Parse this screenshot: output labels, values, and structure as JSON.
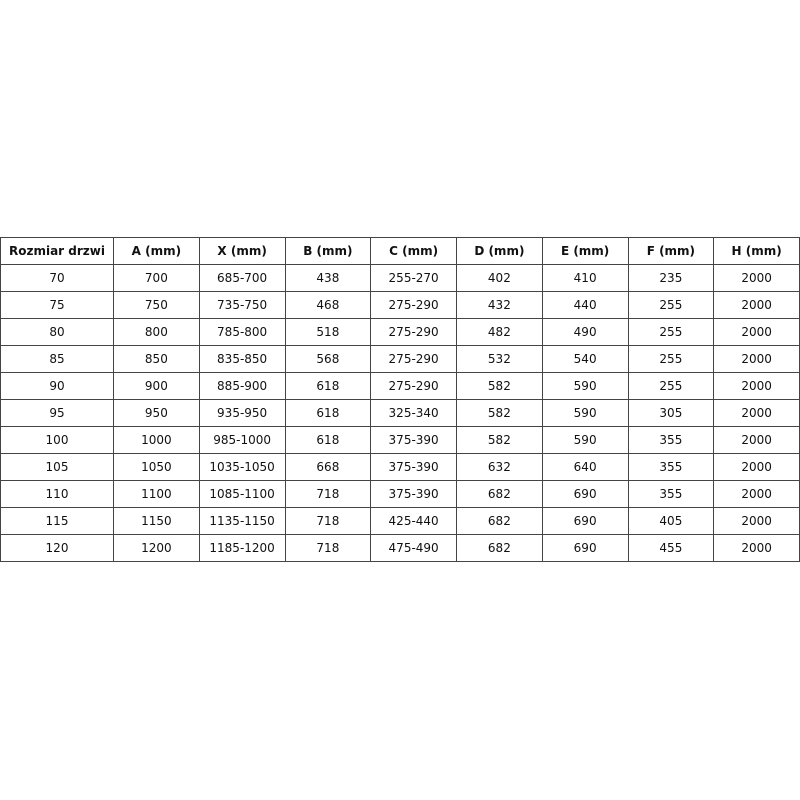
{
  "table": {
    "headers": [
      "Rozmiar drzwi",
      "A (mm)",
      "X (mm)",
      "B (mm)",
      "C (mm)",
      "D (mm)",
      "E (mm)",
      "F (mm)",
      "H (mm)"
    ],
    "rows": [
      [
        "70",
        "700",
        "685-700",
        "438",
        "255-270",
        "402",
        "410",
        "235",
        "2000"
      ],
      [
        "75",
        "750",
        "735-750",
        "468",
        "275-290",
        "432",
        "440",
        "255",
        "2000"
      ],
      [
        "80",
        "800",
        "785-800",
        "518",
        "275-290",
        "482",
        "490",
        "255",
        "2000"
      ],
      [
        "85",
        "850",
        "835-850",
        "568",
        "275-290",
        "532",
        "540",
        "255",
        "2000"
      ],
      [
        "90",
        "900",
        "885-900",
        "618",
        "275-290",
        "582",
        "590",
        "255",
        "2000"
      ],
      [
        "95",
        "950",
        "935-950",
        "618",
        "325-340",
        "582",
        "590",
        "305",
        "2000"
      ],
      [
        "100",
        "1000",
        "985-1000",
        "618",
        "375-390",
        "582",
        "590",
        "355",
        "2000"
      ],
      [
        "105",
        "1050",
        "1035-1050",
        "668",
        "375-390",
        "632",
        "640",
        "355",
        "2000"
      ],
      [
        "110",
        "1100",
        "1085-1100",
        "718",
        "375-390",
        "682",
        "690",
        "355",
        "2000"
      ],
      [
        "115",
        "1150",
        "1135-1150",
        "718",
        "425-440",
        "682",
        "690",
        "405",
        "2000"
      ],
      [
        "120",
        "1200",
        "1185-1200",
        "718",
        "475-490",
        "682",
        "690",
        "455",
        "2000"
      ]
    ]
  }
}
